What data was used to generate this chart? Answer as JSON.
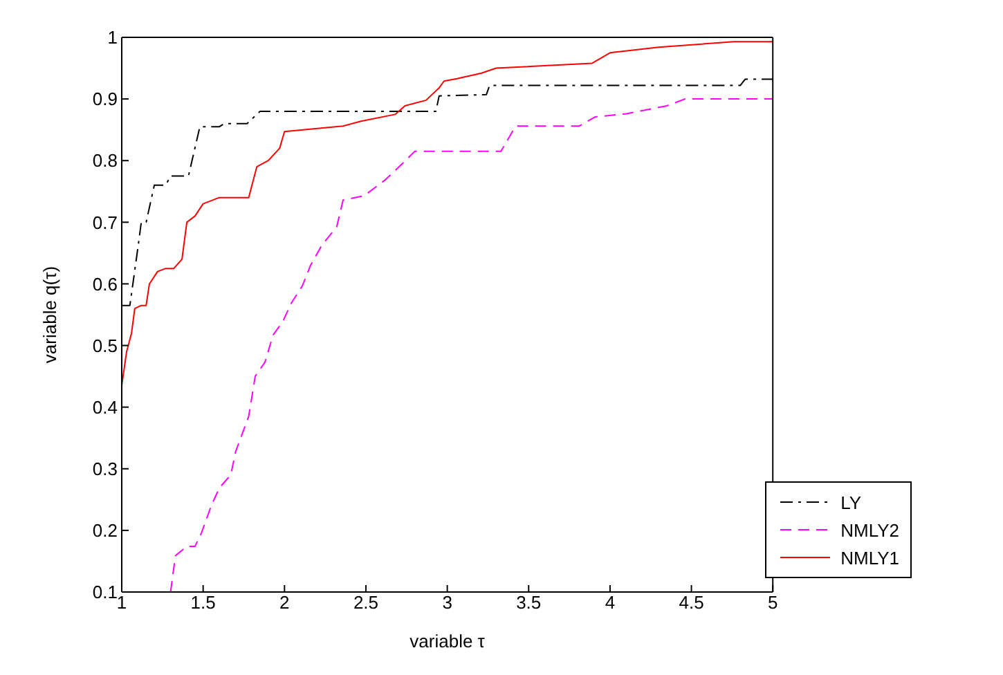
{
  "chart_data": {
    "type": "line",
    "xlabel": "variable τ",
    "ylabel": "variable q(τ)",
    "xlim": [
      1,
      5
    ],
    "ylim": [
      0.1,
      1
    ],
    "xticks": [
      1,
      1.5,
      2,
      2.5,
      3,
      3.5,
      4,
      4.5,
      5
    ],
    "yticks": [
      0.1,
      0.2,
      0.3,
      0.4,
      0.5,
      0.6,
      0.7,
      0.8,
      0.9,
      1
    ],
    "grid": false,
    "legend": "bottom right",
    "marker": "none",
    "series": [
      {
        "name": "LY",
        "color": "#000000",
        "line_style": "dashdot",
        "x": [
          1,
          1.05,
          1.1,
          1.12,
          1.15,
          1.2,
          1.27,
          1.3,
          1.41,
          1.48,
          1.6,
          1.63,
          1.77,
          1.85,
          2.93,
          2.95,
          3.24,
          3.26,
          4.8,
          4.83,
          5
        ],
        "values": [
          0.565,
          0.565,
          0.66,
          0.7,
          0.7,
          0.76,
          0.76,
          0.775,
          0.775,
          0.855,
          0.855,
          0.86,
          0.86,
          0.88,
          0.88,
          0.905,
          0.907,
          0.922,
          0.922,
          0.932,
          0.932
        ]
      },
      {
        "name": "NMLY2",
        "color": "#ff00ff",
        "line_style": "dashed",
        "x": [
          1.3,
          1.33,
          1.4,
          1.45,
          1.49,
          1.55,
          1.6,
          1.67,
          1.7,
          1.78,
          1.82,
          1.88,
          1.93,
          1.99,
          2.04,
          2.11,
          2.16,
          2.23,
          2.32,
          2.36,
          2.49,
          2.62,
          2.72,
          2.8,
          3.33,
          3.42,
          3.81,
          3.91,
          4.1,
          4.35,
          4.46,
          5
        ],
        "values": [
          0.1,
          0.159,
          0.174,
          0.174,
          0.196,
          0.24,
          0.269,
          0.29,
          0.328,
          0.385,
          0.45,
          0.473,
          0.517,
          0.539,
          0.568,
          0.597,
          0.63,
          0.663,
          0.692,
          0.736,
          0.743,
          0.769,
          0.794,
          0.815,
          0.815,
          0.856,
          0.856,
          0.871,
          0.876,
          0.889,
          0.9,
          0.9
        ]
      },
      {
        "name": "NMLY1",
        "color": "#ff0000",
        "line_style": "solid",
        "x": [
          1,
          1.03,
          1.06,
          1.08,
          1.12,
          1.15,
          1.17,
          1.22,
          1.27,
          1.32,
          1.37,
          1.4,
          1.45,
          1.5,
          1.6,
          1.78,
          1.83,
          1.9,
          1.97,
          2,
          2.36,
          2.47,
          2.68,
          2.74,
          2.87,
          2.95,
          2.98,
          3.06,
          3.21,
          3.3,
          3.89,
          4,
          4.3,
          4.76,
          5
        ],
        "values": [
          0.435,
          0.49,
          0.52,
          0.56,
          0.565,
          0.565,
          0.6,
          0.62,
          0.625,
          0.625,
          0.64,
          0.7,
          0.71,
          0.73,
          0.74,
          0.74,
          0.79,
          0.8,
          0.82,
          0.847,
          0.856,
          0.864,
          0.875,
          0.889,
          0.898,
          0.918,
          0.929,
          0.933,
          0.942,
          0.95,
          0.958,
          0.975,
          0.984,
          0.993,
          0.993
        ]
      }
    ]
  }
}
